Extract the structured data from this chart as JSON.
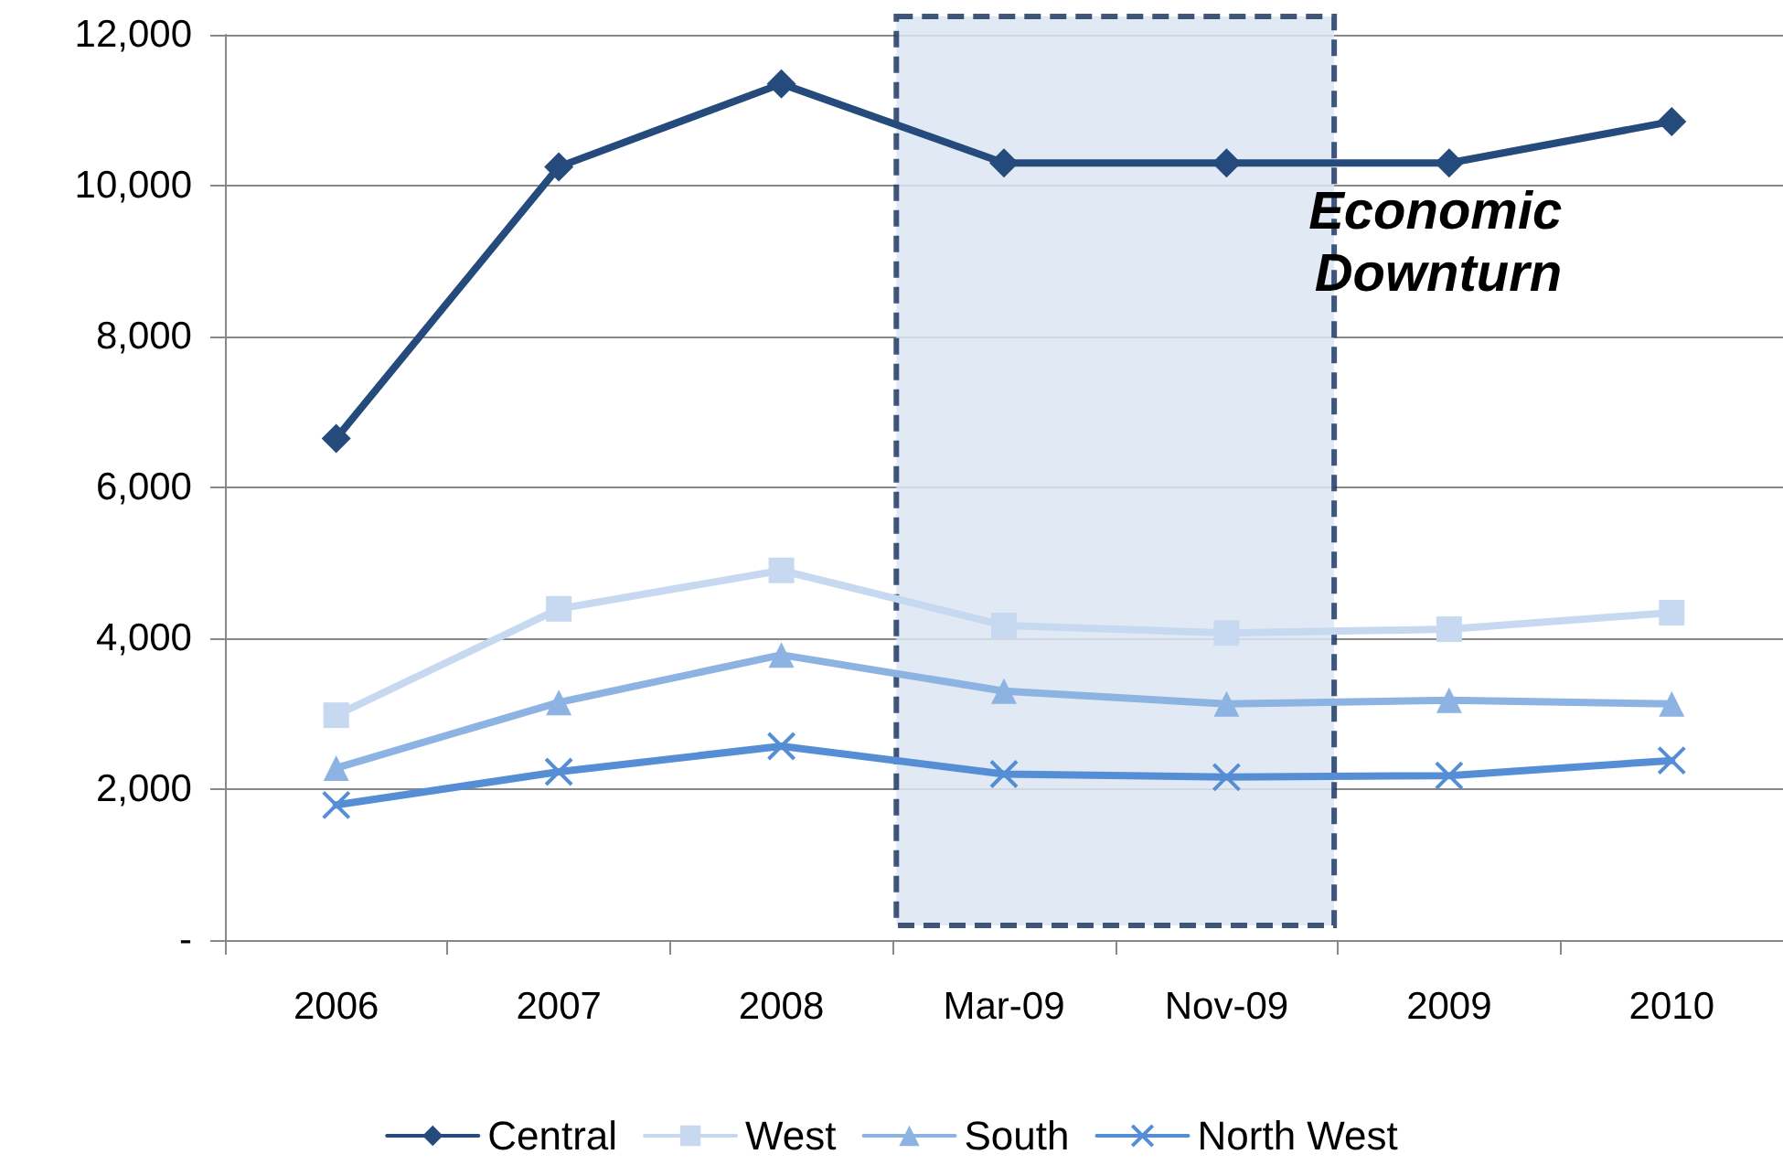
{
  "chart_data": {
    "type": "line",
    "categories": [
      "2006",
      "2007",
      "2008",
      "Mar-09",
      "Nov-09",
      "2009",
      "2010"
    ],
    "series": [
      {
        "name": "Central",
        "color": "#254a7c",
        "marker": "diamond",
        "values": [
          6650,
          10250,
          11350,
          10300,
          10300,
          10300,
          10850
        ]
      },
      {
        "name": "West",
        "color": "#c6d9f0",
        "marker": "square",
        "values": [
          2980,
          4390,
          4900,
          4170,
          4070,
          4120,
          4340
        ]
      },
      {
        "name": "South",
        "color": "#8db3e2",
        "marker": "triangle",
        "values": [
          2280,
          3150,
          3780,
          3300,
          3130,
          3180,
          3130
        ]
      },
      {
        "name": "North West",
        "color": "#558ed5",
        "marker": "cross",
        "values": [
          1790,
          2230,
          2570,
          2200,
          2160,
          2180,
          2380
        ]
      }
    ],
    "ylim": [
      0,
      12000
    ],
    "yticks": [
      {
        "value": 0,
        "label": "-"
      },
      {
        "value": 2000,
        "label": "2,000"
      },
      {
        "value": 4000,
        "label": "4,000"
      },
      {
        "value": 6000,
        "label": "6,000"
      },
      {
        "value": 8000,
        "label": "8,000"
      },
      {
        "value": 10000,
        "label": "10,000"
      },
      {
        "value": 12000,
        "label": "12,000"
      }
    ],
    "grid": "y",
    "legend": "bottom",
    "line_style": "solid",
    "bands": [
      {
        "axis": "x",
        "from": "Mar-09",
        "to": "Nov-09",
        "label": "Economic Downturn",
        "color": "#dce6f2"
      }
    ]
  }
}
